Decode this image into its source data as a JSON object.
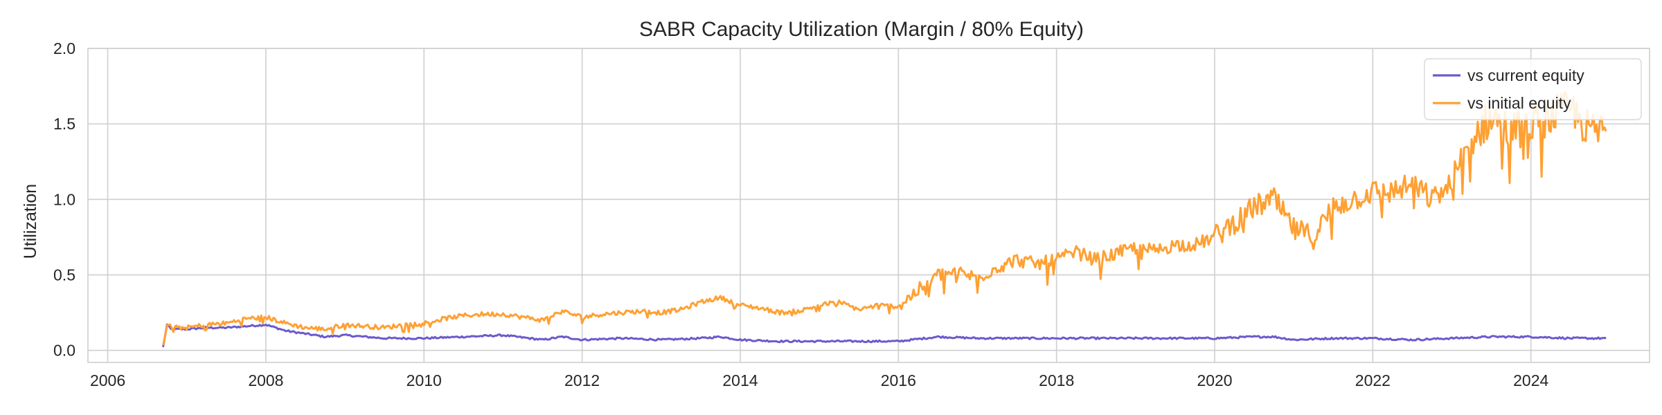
{
  "chart_data": {
    "type": "line",
    "title": "SABR Capacity Utilization (Margin / 80% Equity)",
    "xlabel": "",
    "ylabel": "Utilization",
    "xlim": [
      2005.75,
      2025.5
    ],
    "ylim": [
      -0.08,
      2.0
    ],
    "x_ticks": [
      2006,
      2008,
      2010,
      2012,
      2014,
      2016,
      2018,
      2020,
      2022,
      2024
    ],
    "y_ticks": [
      0.0,
      0.5,
      1.0,
      1.5,
      2.0
    ],
    "x_tick_labels": [
      "2006",
      "2008",
      "2010",
      "2012",
      "2014",
      "2016",
      "2018",
      "2020",
      "2022",
      "2024"
    ],
    "y_tick_labels": [
      "0.0",
      "0.5",
      "1.0",
      "1.5",
      "2.0"
    ],
    "grid": true,
    "legend": {
      "position": "top-right"
    },
    "colors": {
      "vs current equity": "#6a5acd",
      "vs initial equity": "#ffa033"
    },
    "series": [
      {
        "name": "vs current equity",
        "x": [
          2006.7,
          2006.75,
          2006.8,
          2007.0,
          2007.25,
          2007.5,
          2007.75,
          2008.0,
          2008.25,
          2008.5,
          2008.75,
          2009.0,
          2009.5,
          2010.0,
          2010.5,
          2011.0,
          2011.5,
          2011.75,
          2012.0,
          2012.5,
          2013.0,
          2013.5,
          2013.75,
          2014.0,
          2014.5,
          2015.0,
          2015.5,
          2016.0,
          2016.5,
          2017.0,
          2017.5,
          2018.0,
          2018.5,
          2019.0,
          2019.5,
          2020.0,
          2020.5,
          2020.75,
          2021.0,
          2021.5,
          2022.0,
          2022.5,
          2023.0,
          2023.5,
          2024.0,
          2024.5,
          2024.95
        ],
        "values": [
          0.02,
          0.17,
          0.14,
          0.14,
          0.15,
          0.15,
          0.16,
          0.17,
          0.13,
          0.11,
          0.09,
          0.1,
          0.08,
          0.08,
          0.09,
          0.1,
          0.07,
          0.09,
          0.07,
          0.08,
          0.07,
          0.08,
          0.09,
          0.07,
          0.06,
          0.06,
          0.06,
          0.06,
          0.09,
          0.08,
          0.08,
          0.08,
          0.08,
          0.08,
          0.08,
          0.08,
          0.09,
          0.09,
          0.07,
          0.08,
          0.08,
          0.07,
          0.08,
          0.09,
          0.09,
          0.08,
          0.08
        ]
      },
      {
        "name": "vs initial equity",
        "x": [
          2006.7,
          2006.75,
          2006.85,
          2007.0,
          2007.25,
          2007.5,
          2007.75,
          2008.0,
          2008.25,
          2008.5,
          2008.75,
          2009.0,
          2009.25,
          2009.5,
          2009.75,
          2010.0,
          2010.25,
          2010.5,
          2010.75,
          2011.0,
          2011.25,
          2011.5,
          2011.75,
          2012.0,
          2012.25,
          2012.5,
          2012.75,
          2013.0,
          2013.25,
          2013.5,
          2013.75,
          2014.0,
          2014.25,
          2014.5,
          2014.75,
          2015.0,
          2015.25,
          2015.5,
          2015.75,
          2016.0,
          2016.25,
          2016.5,
          2016.75,
          2017.0,
          2017.25,
          2017.5,
          2017.75,
          2018.0,
          2018.25,
          2018.5,
          2018.75,
          2019.0,
          2019.25,
          2019.5,
          2019.75,
          2020.0,
          2020.25,
          2020.5,
          2020.75,
          2021.0,
          2021.25,
          2021.5,
          2021.75,
          2022.0,
          2022.25,
          2022.5,
          2022.75,
          2023.0,
          2023.25,
          2023.5,
          2023.75,
          2024.0,
          2024.25,
          2024.5,
          2024.75,
          2024.95
        ],
        "values": [
          0.02,
          0.17,
          0.15,
          0.15,
          0.17,
          0.18,
          0.21,
          0.22,
          0.18,
          0.15,
          0.14,
          0.17,
          0.16,
          0.15,
          0.17,
          0.18,
          0.21,
          0.23,
          0.24,
          0.24,
          0.22,
          0.2,
          0.26,
          0.22,
          0.24,
          0.25,
          0.26,
          0.25,
          0.27,
          0.32,
          0.35,
          0.3,
          0.28,
          0.25,
          0.26,
          0.3,
          0.32,
          0.27,
          0.3,
          0.29,
          0.4,
          0.5,
          0.52,
          0.48,
          0.55,
          0.6,
          0.57,
          0.6,
          0.65,
          0.6,
          0.64,
          0.68,
          0.66,
          0.7,
          0.7,
          0.75,
          0.85,
          0.95,
          1.0,
          0.8,
          0.75,
          0.95,
          1.0,
          1.05,
          1.05,
          1.1,
          1.0,
          1.1,
          1.4,
          1.55,
          1.45,
          1.5,
          1.55,
          1.6,
          1.45,
          1.45
        ]
      }
    ]
  }
}
